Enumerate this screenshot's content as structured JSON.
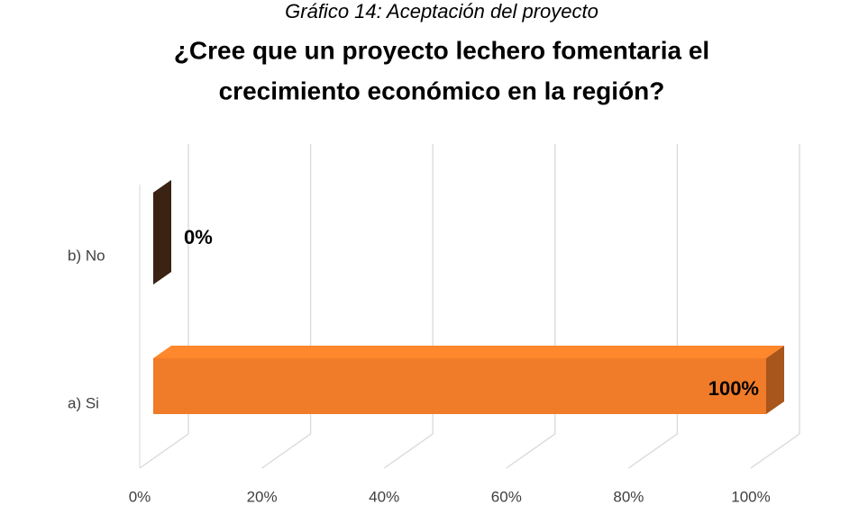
{
  "chart_data": {
    "type": "bar3d",
    "caption": "Gráfico 14: Aceptación del proyecto",
    "title": [
      "¿Cree que un proyecto lechero fomentaria el",
      "crecimiento económico en la región?"
    ],
    "categories": [
      "b)    No",
      "a)    Si"
    ],
    "values": [
      0,
      100
    ],
    "value_labels": [
      "0%",
      "100%"
    ],
    "colors": [
      "#3b2314",
      "#f07b28"
    ],
    "xlim": [
      0,
      100
    ],
    "xticks": [
      {
        "value": 0,
        "label": "0%"
      },
      {
        "value": 20,
        "label": "20%"
      },
      {
        "value": 40,
        "label": "40%"
      },
      {
        "value": 60,
        "label": "60%"
      },
      {
        "value": 80,
        "label": "80%"
      },
      {
        "value": 100,
        "label": "100%"
      }
    ],
    "grid": true
  }
}
